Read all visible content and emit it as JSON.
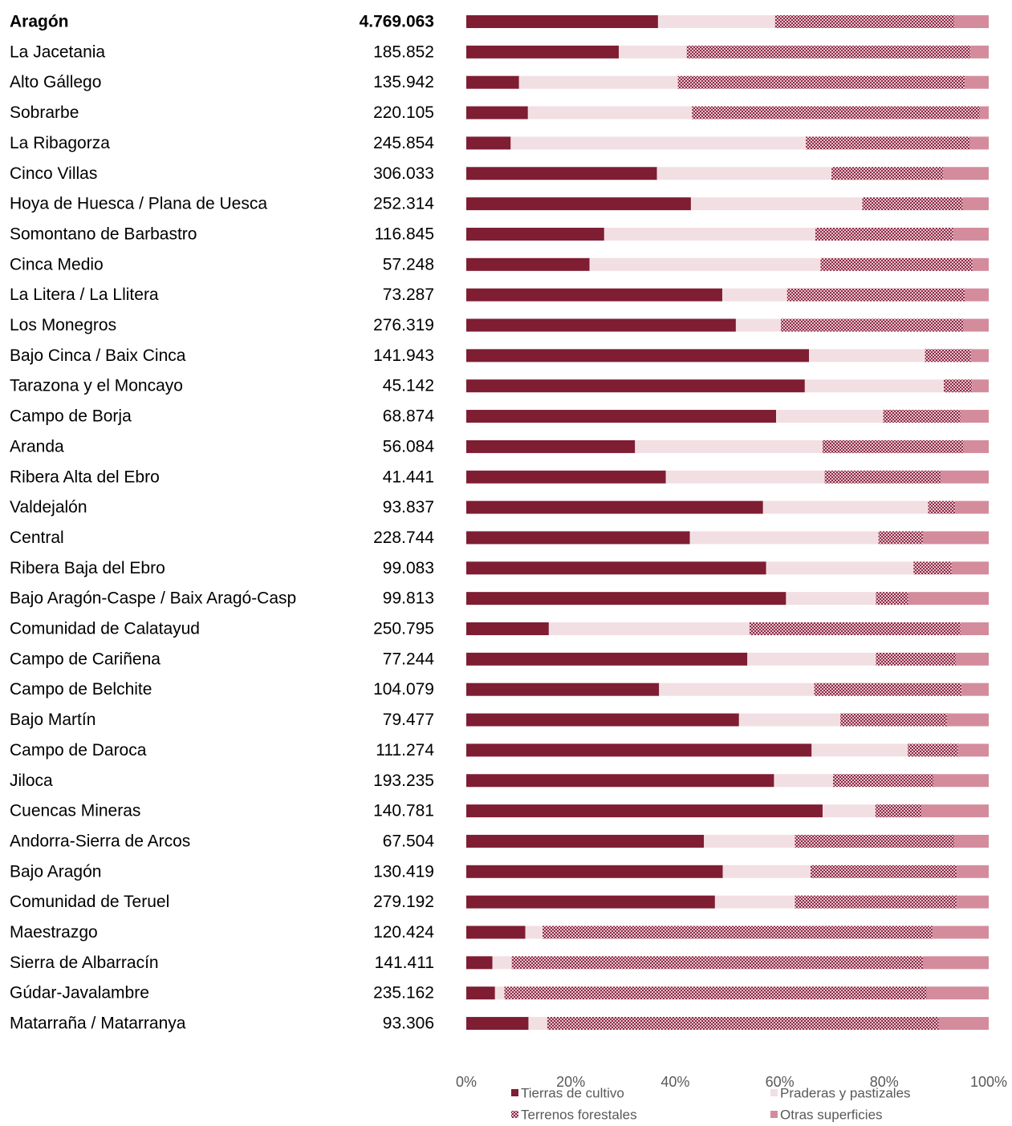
{
  "chart_data": {
    "type": "bar",
    "orientation": "horizontal",
    "stacked": "percent",
    "title": "",
    "xlabel": "",
    "ylabel": "",
    "xlim": [
      0,
      100
    ],
    "x_ticks": [
      "0%",
      "20%",
      "40%",
      "60%",
      "80%",
      "100%"
    ],
    "grid": false,
    "legend_position": "bottom-right",
    "categories": [
      "Aragón",
      "La Jacetania",
      "Alto Gállego",
      "Sobrarbe",
      "La Ribagorza",
      "Cinco Villas",
      "Hoya de Huesca / Plana de Uesca",
      "Somontano de Barbastro",
      "Cinca Medio",
      "La Litera / La Llitera",
      "Los Monegros",
      "Bajo Cinca / Baix Cinca",
      "Tarazona y el Moncayo",
      "Campo de Borja",
      "Aranda",
      "Ribera Alta del Ebro",
      "Valdejalón",
      "Central",
      "Ribera Baja del Ebro",
      "Bajo Aragón-Caspe / Baix Aragó-Casp",
      "Comunidad de Calatayud",
      "Campo de Cariñena",
      "Campo de Belchite",
      "Bajo Martín",
      "Campo de Daroca",
      "Jiloca",
      "Cuencas Mineras",
      "Andorra-Sierra de Arcos",
      "Bajo Aragón",
      "Comunidad de Teruel",
      "Maestrazgo",
      "Sierra de Albarracín",
      "Gúdar-Javalambre",
      "Matarraña / Matarranya"
    ],
    "bold_categories": [
      "Aragón"
    ],
    "totals": [
      "4.769.063",
      "185.852",
      "135.942",
      "220.105",
      "245.854",
      "306.033",
      "252.314",
      "116.845",
      "57.248",
      "73.287",
      "276.319",
      "141.943",
      "45.142",
      "68.874",
      "56.084",
      "41.441",
      "93.837",
      "228.744",
      "99.083",
      "99.813",
      "250.795",
      "77.244",
      "104.079",
      "79.477",
      "111.274",
      "193.235",
      "140.781",
      "67.504",
      "130.419",
      "279.192",
      "120.424",
      "141.411",
      "235.162",
      "93.306"
    ],
    "series": [
      {
        "name": "Tierras de cultivo",
        "color": "#7f1d33",
        "pattern": "solid",
        "values": [
          36.7,
          29.2,
          10.1,
          11.8,
          8.5,
          36.5,
          43.0,
          26.4,
          23.6,
          49.0,
          51.6,
          65.6,
          64.8,
          59.3,
          32.3,
          38.2,
          56.8,
          42.8,
          57.4,
          61.2,
          15.8,
          53.8,
          36.9,
          52.2,
          66.1,
          58.9,
          68.2,
          45.5,
          49.1,
          47.6,
          11.3,
          5.0,
          5.5,
          11.9
        ]
      },
      {
        "name": "Praderas y pastizales",
        "color": "#f2dfe3",
        "pattern": "solid",
        "values": [
          22.4,
          13.0,
          30.4,
          31.4,
          56.5,
          33.4,
          32.8,
          40.4,
          44.2,
          12.4,
          8.6,
          22.2,
          26.6,
          20.5,
          35.9,
          30.4,
          31.6,
          36.1,
          28.2,
          17.2,
          38.4,
          24.6,
          29.7,
          19.4,
          18.4,
          11.3,
          10.1,
          17.4,
          16.8,
          15.3,
          3.3,
          3.7,
          1.8,
          3.6
        ]
      },
      {
        "name": "Terrenos forestales",
        "color": "#8c2a45",
        "pattern": "checker",
        "values": [
          34.3,
          54.3,
          54.9,
          55.1,
          31.4,
          21.4,
          19.2,
          26.4,
          29.1,
          34.0,
          35.0,
          8.8,
          5.4,
          14.8,
          27.0,
          22.3,
          5.2,
          8.5,
          7.3,
          6.2,
          40.4,
          15.3,
          28.2,
          20.4,
          9.6,
          19.2,
          8.9,
          30.5,
          28.0,
          31.0,
          74.7,
          78.7,
          80.8,
          74.9
        ]
      },
      {
        "name": "Otras superficies",
        "color": "#d48c9c",
        "pattern": "solid",
        "values": [
          6.6,
          3.5,
          4.6,
          1.7,
          3.6,
          8.7,
          5.0,
          6.8,
          3.1,
          4.6,
          4.8,
          3.4,
          3.2,
          5.4,
          4.8,
          9.1,
          6.4,
          12.6,
          7.1,
          15.4,
          5.4,
          6.3,
          5.2,
          8.0,
          5.9,
          10.6,
          12.8,
          6.6,
          6.1,
          6.1,
          10.7,
          12.6,
          11.9,
          9.6
        ]
      }
    ]
  }
}
